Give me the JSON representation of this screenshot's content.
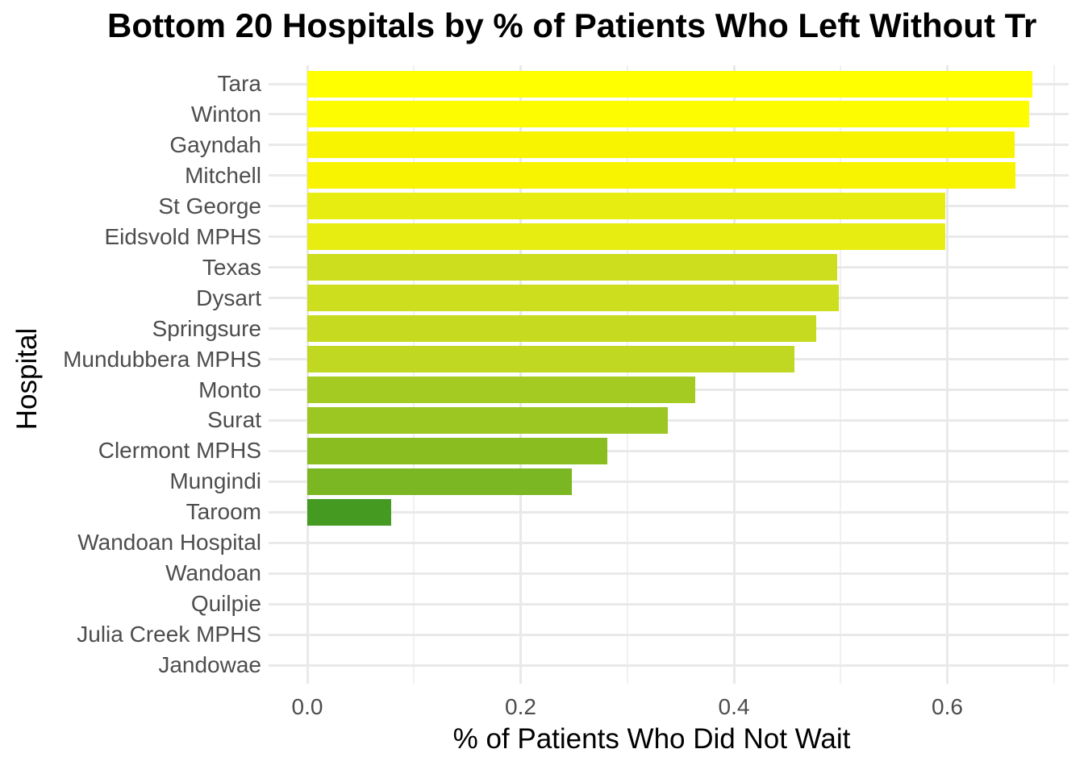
{
  "chart_data": {
    "type": "bar",
    "orientation": "horizontal",
    "title": "Bottom 20 Hospitals by % of Patients Who Left Without Tr",
    "title_note": "title text is clipped at the right edge of the image",
    "xlabel": "% of Patients Who Did Not Wait",
    "ylabel": "Hospital",
    "xlim": [
      -0.034,
      0.715
    ],
    "x_ticks": [
      {
        "value": 0.0,
        "label": "0.0"
      },
      {
        "value": 0.2,
        "label": "0.2"
      },
      {
        "value": 0.4,
        "label": "0.4"
      },
      {
        "value": 0.6,
        "label": "0.6"
      }
    ],
    "x_minor_gridlines": [
      0.1,
      0.3,
      0.5,
      0.7
    ],
    "grid": "major and minor vertical gridlines + one horizontal gridline per category, white background, no axis lines, no tick marks",
    "legend": "none",
    "bars": [
      {
        "label": "Tara",
        "value": 0.68,
        "color": "#ffff00"
      },
      {
        "label": "Winton",
        "value": 0.677,
        "color": "#fdfc00"
      },
      {
        "label": "Gayndah",
        "value": 0.663,
        "color": "#f8f400"
      },
      {
        "label": "Mitchell",
        "value": 0.664,
        "color": "#f8f400"
      },
      {
        "label": "St George",
        "value": 0.598,
        "color": "#e7ec11"
      },
      {
        "label": "Eidsvold MPHS",
        "value": 0.598,
        "color": "#e7ec11"
      },
      {
        "label": "Texas",
        "value": 0.497,
        "color": "#cdde1e"
      },
      {
        "label": "Dysart",
        "value": 0.498,
        "color": "#cdde1e"
      },
      {
        "label": "Springsure",
        "value": 0.477,
        "color": "#c6db20"
      },
      {
        "label": "Mundubbera MPHS",
        "value": 0.457,
        "color": "#c0d822"
      },
      {
        "label": "Monto",
        "value": 0.364,
        "color": "#a3cb22"
      },
      {
        "label": "Surat",
        "value": 0.338,
        "color": "#9cc722"
      },
      {
        "label": "Clermont MPHS",
        "value": 0.281,
        "color": "#8abd20"
      },
      {
        "label": "Mungindi",
        "value": 0.248,
        "color": "#7ab722"
      },
      {
        "label": "Taroom",
        "value": 0.079,
        "color": "#459a22"
      },
      {
        "label": "Wandoan Hospital",
        "value": 0.0,
        "color": null
      },
      {
        "label": "Wandoan",
        "value": 0.0,
        "color": null
      },
      {
        "label": "Quilpie",
        "value": 0.0,
        "color": null
      },
      {
        "label": "Julia Creek MPHS",
        "value": 0.0,
        "color": null
      },
      {
        "label": "Jandowae",
        "value": 0.0,
        "color": null
      }
    ]
  },
  "colors": {
    "background": "#ffffff",
    "grid_major": "#e9e9e9",
    "grid_minor": "#f1f1f1",
    "axis_text": "#4d4d4d",
    "title_text": "#000000"
  }
}
